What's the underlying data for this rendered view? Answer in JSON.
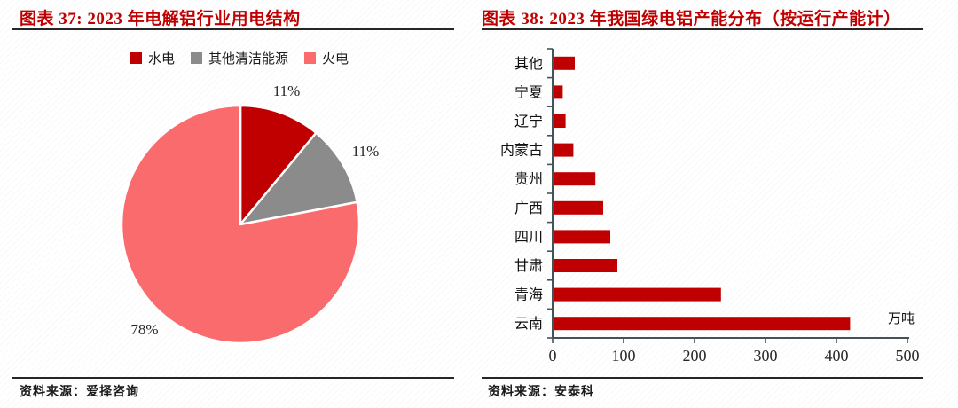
{
  "colors": {
    "title_red": "#C00000",
    "bar_red": "#C00000",
    "pie_hydro_red": "#C00000",
    "pie_clean_gray": "#8B8B8B",
    "pie_thermal_salmon": "#FA6B6E",
    "axis": "#435456",
    "rule_line": "#262626",
    "text_dark": "#1a1a1a"
  },
  "left_panel": {
    "title": "图表 37: 2023 年电解铝行业用电结构",
    "source": "资料来源：爱择咨询"
  },
  "right_panel": {
    "title": "图表 38: 2023 年我国绿电铝产能分布（按运行产能计）",
    "source": "资料来源：安泰科"
  },
  "chart_data": [
    {
      "type": "pie",
      "title": "2023 年电解铝行业用电结构",
      "legend_position": "top",
      "start_angle_deg": 0,
      "direction": "clockwise",
      "slices": [
        {
          "label": "水电",
          "value": 11,
          "display": "11%",
          "color": "#C00000"
        },
        {
          "label": "其他清洁能源",
          "value": 11,
          "display": "11%",
          "color": "#8B8B8B"
        },
        {
          "label": "火电",
          "value": 78,
          "display": "78%",
          "color": "#FA6B6E"
        }
      ]
    },
    {
      "type": "bar",
      "orientation": "horizontal",
      "title": "2023 年我国绿电铝产能分布（按运行产能计）",
      "categories": [
        "其他",
        "宁夏",
        "辽宁",
        "内蒙古",
        "贵州",
        "广西",
        "四川",
        "甘肃",
        "青海",
        "云南"
      ],
      "values": [
        30,
        13,
        17,
        28,
        59,
        70,
        80,
        90,
        236,
        418
      ],
      "unit_label": "万吨",
      "xlabel": "",
      "ylabel": "",
      "xlim": [
        0,
        500
      ],
      "x_ticks": [
        0,
        100,
        200,
        300,
        400,
        500
      ],
      "bar_color": "#C00000",
      "grid": false
    }
  ]
}
